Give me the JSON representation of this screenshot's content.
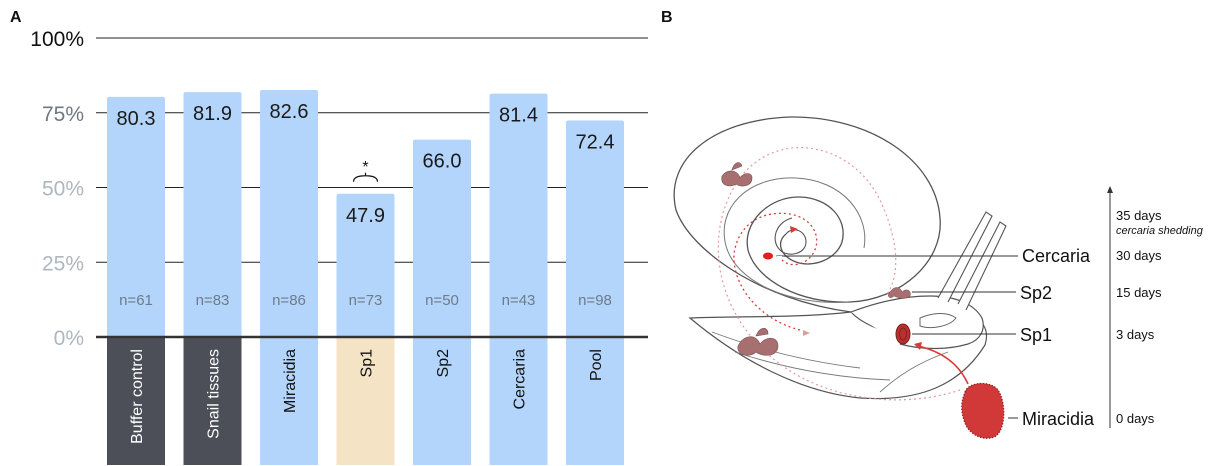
{
  "panels": {
    "a": "A",
    "b": "B"
  },
  "colors": {
    "bar": "#b4d5fb",
    "control": "#4c4f58",
    "highlight": "#f5e3c6",
    "axis": "#333333",
    "tick_top": "#111111",
    "tick_faded": "#aeb6bf",
    "parasite": "#d93a3a",
    "parasite_dark": "#a86f70"
  },
  "chart_data": {
    "type": "bar",
    "categories": [
      "Buffer control",
      "Snail tissues",
      "Miracidia",
      "Sp1",
      "Sp2",
      "Cercaria",
      "Pool"
    ],
    "values": [
      80.3,
      81.9,
      82.6,
      47.9,
      66.0,
      81.4,
      72.4
    ],
    "value_labels": [
      "80.3",
      "81.9",
      "82.6",
      "47.9",
      "66.0",
      "81.4",
      "72.4"
    ],
    "n_labels": [
      "n=61",
      "n=83",
      "n=86",
      "n=73",
      "n=50",
      "n=43",
      "n=98"
    ],
    "category_style": [
      "control",
      "control",
      "bar",
      "highlight",
      "bar",
      "bar",
      "bar"
    ],
    "yticks": [
      0,
      25,
      50,
      75,
      100
    ],
    "ytick_labels": [
      "0%",
      "25%",
      "50%",
      "75%",
      "100%"
    ],
    "ylim": [
      0,
      100
    ],
    "grid": true,
    "significance": {
      "category": "Sp1",
      "label": "*"
    }
  },
  "diagram": {
    "stages": [
      "Cercaria",
      "Sp2",
      "Sp1",
      "Miracidia"
    ],
    "days": [
      "35 days",
      "30 days",
      "15 days",
      "3 days",
      "0 days"
    ],
    "shedding": "cercaria shedding"
  }
}
